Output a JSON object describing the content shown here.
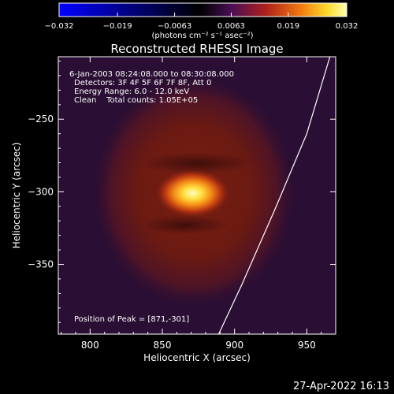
{
  "chart_data": {
    "type": "heatmap",
    "title": "Reconstructed RHESSI Image",
    "xlabel": "Heliocentric X (arcsec)",
    "ylabel": "Heliocentric Y (arcsec)",
    "xlim": [
      778,
      970
    ],
    "ylim": [
      -398,
      -207
    ],
    "x_ticks": [
      800,
      850,
      900,
      950
    ],
    "x_tick_labels": [
      "800",
      "850",
      "900",
      "950"
    ],
    "y_ticks": [
      -250,
      -300,
      -350
    ],
    "y_tick_labels": [
      "−250",
      "−300",
      "−350"
    ],
    "colorbar": {
      "range": [
        -0.032,
        0.032
      ],
      "ticks": [
        -0.032,
        -0.019,
        -0.0063,
        0.0063,
        0.019,
        0.032
      ],
      "tick_labels": [
        "−0.032",
        "−0.019",
        "−0.0063",
        "0.0063",
        "0.019",
        "0.032"
      ],
      "unit": "(photons cm⁻² s⁻¹ asec⁻²)"
    },
    "annotations": [
      "6-Jan-2003 08:24:08.000 to 08:30:08.000",
      "Detectors: 3F 4F 5F 6F 7F 8F, Att 0",
      "Energy Range: 6.0 - 12.0 keV",
      "Clean    Total counts: 1.05E+05",
      "Position of Peak = [871,-301]"
    ],
    "peak": {
      "x": 871,
      "y": -301
    },
    "background_emission": {
      "center_x": 872,
      "center_y": -300,
      "radius_x": 72,
      "radius_y": 82
    },
    "limb_curve": [
      [
        966,
        -207
      ],
      [
        950,
        -260
      ],
      [
        928,
        -312
      ],
      [
        905,
        -364
      ],
      [
        889,
        -398
      ]
    ]
  },
  "timestamp": "27-Apr-2022 16:13"
}
